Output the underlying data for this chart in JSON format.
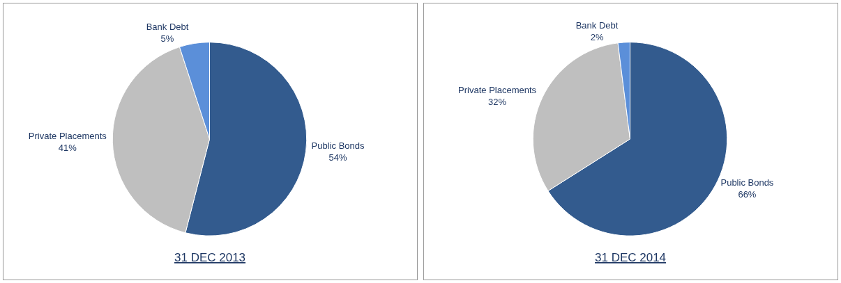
{
  "chart_data": [
    {
      "type": "pie",
      "title": "31 DEC 2013",
      "categories": [
        "Public Bonds",
        "Private Placements",
        "Bank Debt"
      ],
      "values": [
        54,
        41,
        5
      ],
      "colors": [
        "#335b8e",
        "#bfbfbf",
        "#5b8fd9"
      ],
      "value_labels": [
        "54%",
        "41%",
        "5%"
      ],
      "legend": false
    },
    {
      "type": "pie",
      "title": "31 DEC 2014",
      "categories": [
        "Public Bonds",
        "Private Placements",
        "Bank Debt"
      ],
      "values": [
        66,
        32,
        2
      ],
      "colors": [
        "#335b8e",
        "#bfbfbf",
        "#5b8fd9"
      ],
      "value_labels": [
        "66%",
        "32%",
        "2%"
      ],
      "legend": false
    }
  ]
}
